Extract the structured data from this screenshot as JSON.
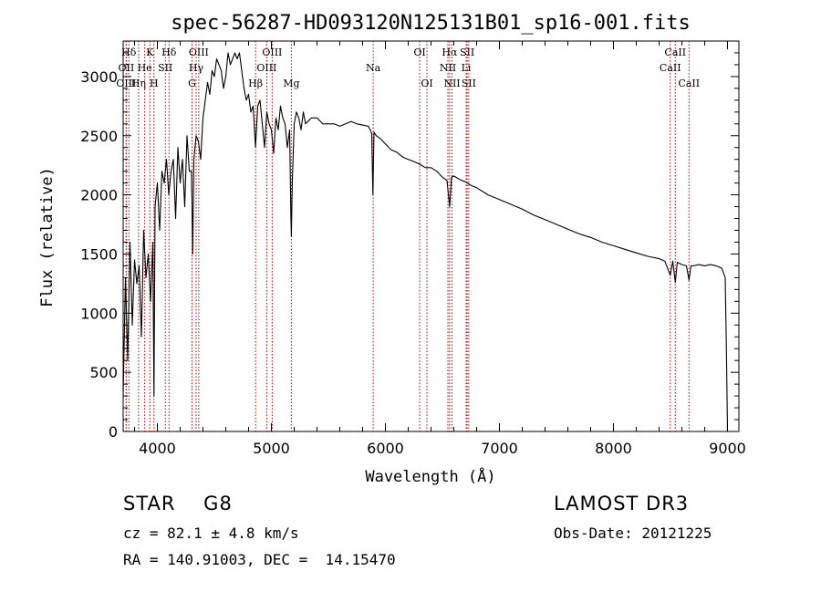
{
  "chart_data": {
    "type": "line",
    "title": "spec-56287-HD093120N125131B01_sp16-001.fits",
    "xlabel": "Wavelength (Å)",
    "ylabel": "Flux (relative)",
    "xlim": [
      3700,
      9100
    ],
    "ylim": [
      0,
      3300
    ],
    "x_ticks": [
      4000,
      5000,
      6000,
      7000,
      8000,
      9000
    ],
    "y_ticks": [
      0,
      500,
      1000,
      1500,
      2000,
      2500,
      3000
    ],
    "grid": false,
    "series": [
      {
        "x": [
          3700,
          3720,
          3740,
          3760,
          3780,
          3800,
          3820,
          3840,
          3860,
          3880,
          3900,
          3920,
          3940,
          3960,
          3970,
          3980,
          4000,
          4020,
          4040,
          4060,
          4080,
          4100,
          4120,
          4140,
          4160,
          4180,
          4200,
          4220,
          4240,
          4260,
          4280,
          4300,
          4310,
          4320,
          4340,
          4360,
          4380,
          4400,
          4420,
          4440,
          4460,
          4480,
          4500,
          4520,
          4540,
          4560,
          4580,
          4600,
          4620,
          4640,
          4660,
          4680,
          4700,
          4720,
          4740,
          4760,
          4780,
          4800,
          4820,
          4840,
          4861,
          4880,
          4900,
          4920,
          4940,
          4960,
          4980,
          5000,
          5020,
          5040,
          5060,
          5080,
          5100,
          5120,
          5140,
          5160,
          5170,
          5175,
          5183,
          5200,
          5220,
          5240,
          5260,
          5280,
          5300,
          5350,
          5400,
          5450,
          5500,
          5550,
          5600,
          5650,
          5700,
          5750,
          5800,
          5850,
          5880,
          5890,
          5893,
          5900,
          5920,
          5950,
          6000,
          6050,
          6100,
          6150,
          6200,
          6250,
          6300,
          6350,
          6400,
          6450,
          6500,
          6540,
          6563,
          6580,
          6600,
          6650,
          6700,
          6750,
          6800,
          6900,
          7000,
          7100,
          7200,
          7300,
          7400,
          7500,
          7600,
          7700,
          7800,
          7900,
          8000,
          8100,
          8200,
          8300,
          8400,
          8450,
          8498,
          8520,
          8542,
          8560,
          8600,
          8640,
          8662,
          8680,
          8700,
          8750,
          8800,
          8850,
          8900,
          8950,
          8980,
          8990,
          9000
        ],
        "values": [
          300,
          1300,
          600,
          1600,
          900,
          1450,
          1250,
          1400,
          800,
          1700,
          1300,
          1500,
          1100,
          1600,
          300,
          1900,
          2100,
          1700,
          2200,
          2100,
          2300,
          2000,
          2200,
          2300,
          1800,
          2400,
          2100,
          2300,
          1900,
          2500,
          2200,
          2200,
          1500,
          2300,
          2500,
          2450,
          2300,
          2650,
          2800,
          2950,
          2850,
          3050,
          3000,
          3150,
          3100,
          3050,
          2900,
          3000,
          3200,
          3100,
          3150,
          3200,
          3150,
          3200,
          3050,
          2900,
          2800,
          2850,
          2700,
          2750,
          2400,
          2750,
          2800,
          2600,
          2400,
          2700,
          2600,
          2550,
          2350,
          2650,
          2550,
          2750,
          2650,
          2600,
          2400,
          2550,
          1850,
          1650,
          2100,
          2600,
          2700,
          2650,
          2550,
          2700,
          2600,
          2650,
          2650,
          2600,
          2600,
          2600,
          2580,
          2600,
          2620,
          2600,
          2590,
          2580,
          2520,
          2000,
          2150,
          2530,
          2500,
          2480,
          2430,
          2380,
          2360,
          2320,
          2300,
          2280,
          2260,
          2230,
          2230,
          2200,
          2150,
          2120,
          1900,
          2150,
          2160,
          2130,
          2110,
          2080,
          2060,
          2000,
          1960,
          1920,
          1880,
          1830,
          1790,
          1750,
          1710,
          1670,
          1640,
          1600,
          1570,
          1540,
          1510,
          1480,
          1460,
          1440,
          1320,
          1440,
          1260,
          1430,
          1410,
          1400,
          1280,
          1400,
          1400,
          1410,
          1400,
          1410,
          1400,
          1380,
          1300,
          700,
          0
        ]
      }
    ],
    "lines": [
      {
        "label": "Hδ",
        "x": 3750,
        "row": 0
      },
      {
        "label": "OII",
        "x": 3727,
        "row": 1
      },
      {
        "label": "OIII",
        "x": 3727,
        "row": 2
      },
      {
        "label": "K",
        "x": 3934,
        "row": 0
      },
      {
        "label": "He",
        "x": 3889,
        "row": 1
      },
      {
        "label": "Hη",
        "x": 3835,
        "row": 2
      },
      {
        "label": "H",
        "x": 3970,
        "row": 2
      },
      {
        "label": "Hδ",
        "x": 4102,
        "row": 0
      },
      {
        "label": "SII",
        "x": 4070,
        "row": 1
      },
      {
        "label": "OIII",
        "x": 4363,
        "row": 0
      },
      {
        "label": "Hγ",
        "x": 4340,
        "row": 1
      },
      {
        "label": "G",
        "x": 4304,
        "row": 2
      },
      {
        "label": "OIII",
        "x": 5007,
        "row": 0
      },
      {
        "label": "OIII",
        "x": 4959,
        "row": 1
      },
      {
        "label": "Hβ",
        "x": 4861,
        "row": 2
      },
      {
        "label": "Mg",
        "x": 5175,
        "row": 2
      },
      {
        "label": "Na",
        "x": 5893,
        "row": 1
      },
      {
        "label": "OI",
        "x": 6300,
        "row": 0
      },
      {
        "label": "OI",
        "x": 6364,
        "row": 2
      },
      {
        "label": "Hα",
        "x": 6563,
        "row": 0
      },
      {
        "label": "SII",
        "x": 6717,
        "row": 0
      },
      {
        "label": "NII",
        "x": 6548,
        "row": 1
      },
      {
        "label": "Li",
        "x": 6708,
        "row": 1
      },
      {
        "label": "NII",
        "x": 6584,
        "row": 2
      },
      {
        "label": "SII",
        "x": 6731,
        "row": 2
      },
      {
        "label": "CaII",
        "x": 8542,
        "row": 0
      },
      {
        "label": "CaII",
        "x": 8498,
        "row": 1
      },
      {
        "label": "CaII",
        "x": 8662,
        "row": 2
      }
    ]
  },
  "info": {
    "class": "STAR    G8",
    "survey": "LAMOST DR3",
    "cz": "cz = 82.1 ± 4.8 km/s",
    "obs_date": "Obs-Date: 20121225",
    "coords": "RA = 140.91003, DEC =  14.15470"
  }
}
